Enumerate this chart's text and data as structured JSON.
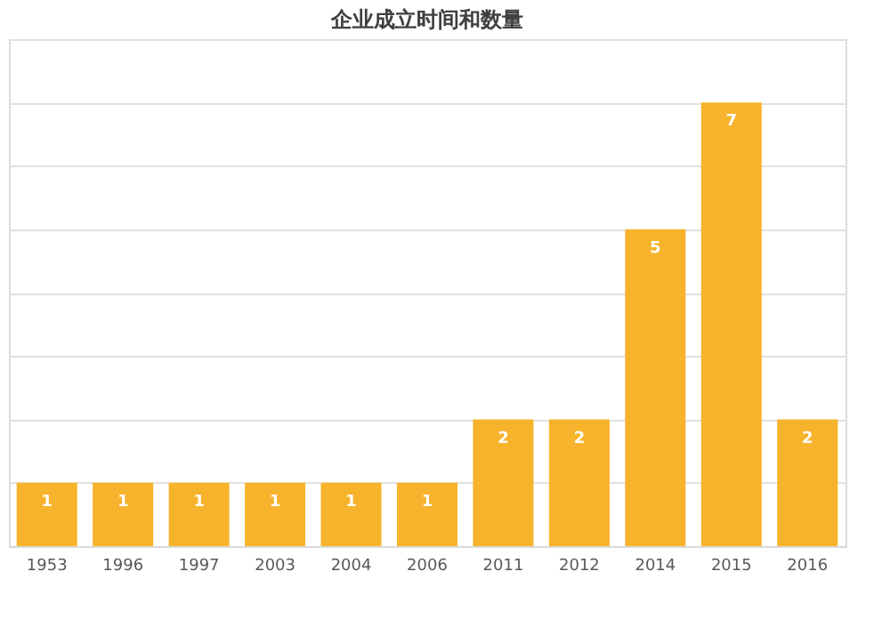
{
  "chart_data": {
    "type": "bar",
    "title": "企业成立时间和数量",
    "categories": [
      "1953",
      "1996",
      "1997",
      "2003",
      "2004",
      "2006",
      "2011",
      "2012",
      "2014",
      "2015",
      "2016"
    ],
    "values": [
      1,
      1,
      1,
      1,
      1,
      1,
      2,
      2,
      5,
      7,
      2
    ],
    "color": "#f7b32b",
    "ylim": [
      0,
      8
    ],
    "grid": "y",
    "data_labels": true
  }
}
